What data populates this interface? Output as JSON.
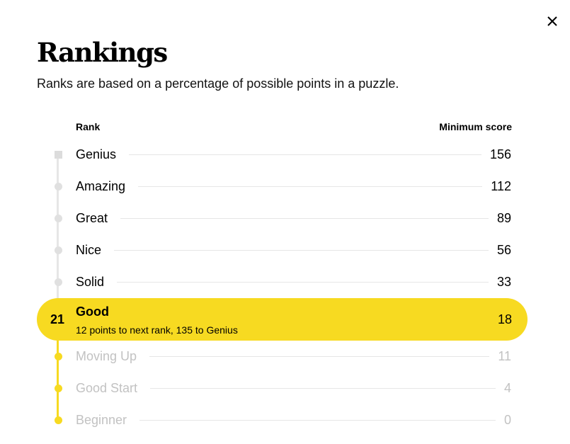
{
  "dialog": {
    "close_icon": "close-icon",
    "title": "Rankings",
    "subtitle": "Ranks are based on a percentage of possible points in a puzzle."
  },
  "table": {
    "rank_header": "Rank",
    "score_header": "Minimum score"
  },
  "ranks": [
    {
      "name": "Genius",
      "score": "156",
      "state": "locked"
    },
    {
      "name": "Amazing",
      "score": "112",
      "state": "locked"
    },
    {
      "name": "Great",
      "score": "89",
      "state": "locked"
    },
    {
      "name": "Nice",
      "score": "56",
      "state": "locked"
    },
    {
      "name": "Solid",
      "score": "33",
      "state": "locked"
    },
    {
      "name": "Good",
      "score": "18",
      "state": "current"
    },
    {
      "name": "Moving Up",
      "score": "11",
      "state": "achieved"
    },
    {
      "name": "Good Start",
      "score": "4",
      "state": "achieved"
    },
    {
      "name": "Beginner",
      "score": "0",
      "state": "achieved"
    }
  ],
  "current": {
    "points": "21",
    "progress_text": "12 points to next rank, 135 to Genius"
  },
  "colors": {
    "accent_yellow": "#f7da21",
    "track_grey": "#e6e6e6",
    "muted_text": "#c2c2c2"
  }
}
